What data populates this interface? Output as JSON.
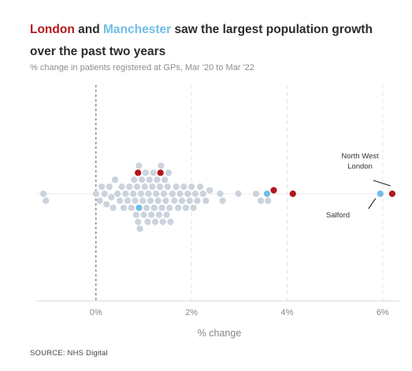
{
  "headline": {
    "london": "London",
    "and": " and ",
    "manchester": "Manchester",
    "rest": " saw the largest population growth over the past two years"
  },
  "subtitle": "% change in patients registered at GPs, Mar '20 to Mar '22",
  "source": "SOURCE: NHS Digital",
  "colors": {
    "london": "#b3161c",
    "manchester": "#70bde8",
    "other": "#cbd3dd"
  },
  "chart_data": {
    "type": "scatter",
    "subtype": "beeswarm",
    "xlabel": "% change",
    "x_ticks": [
      {
        "value": 0,
        "label": "0%"
      },
      {
        "value": 2,
        "label": "2%"
      },
      {
        "value": 4,
        "label": "4%"
      },
      {
        "value": 6,
        "label": "6%"
      }
    ],
    "xlim": [
      -1.25,
      6.35
    ],
    "zero_line": "dashed",
    "grid": "vertical dashed",
    "annotations": [
      {
        "text": "North West London",
        "value": 6.2
      },
      {
        "text": "Salford",
        "value": 5.95
      }
    ],
    "series": [
      {
        "name": "London",
        "points": [
          {
            "x": 0.88,
            "y": 0
          },
          {
            "x": 1.35,
            "y": 0
          },
          {
            "x": 3.72,
            "y": 0
          },
          {
            "x": 4.12,
            "y": 0
          },
          {
            "x": 6.2,
            "y": 0
          }
        ]
      },
      {
        "name": "Manchester",
        "points": [
          {
            "x": 0.9,
            "y": 0
          },
          {
            "x": 3.58,
            "y": 0
          },
          {
            "x": 5.95,
            "y": 0
          }
        ]
      },
      {
        "name": "Other",
        "points": [
          {
            "x": -1.1,
            "y": 0
          },
          {
            "x": -1.05,
            "y": 0
          },
          {
            "x": 0.0,
            "y": 0
          },
          {
            "x": 0.08,
            "y": 0
          },
          {
            "x": 0.12,
            "y": 0
          },
          {
            "x": 0.18,
            "y": 0
          },
          {
            "x": 0.22,
            "y": 0
          },
          {
            "x": 0.28,
            "y": 0
          },
          {
            "x": 0.32,
            "y": 0
          },
          {
            "x": 0.36,
            "y": 0
          },
          {
            "x": 0.4,
            "y": 0
          },
          {
            "x": 0.45,
            "y": 0
          },
          {
            "x": 0.5,
            "y": 0
          },
          {
            "x": 0.54,
            "y": 0
          },
          {
            "x": 0.58,
            "y": 0
          },
          {
            "x": 0.62,
            "y": 0
          },
          {
            "x": 0.66,
            "y": 0
          },
          {
            "x": 0.7,
            "y": 0
          },
          {
            "x": 0.74,
            "y": 0
          },
          {
            "x": 0.78,
            "y": 0
          },
          {
            "x": 0.8,
            "y": 0
          },
          {
            "x": 0.82,
            "y": 0
          },
          {
            "x": 0.84,
            "y": 0
          },
          {
            "x": 0.86,
            "y": 0
          },
          {
            "x": 0.88,
            "y": 0
          },
          {
            "x": 0.9,
            "y": 0
          },
          {
            "x": 0.92,
            "y": 0
          },
          {
            "x": 0.94,
            "y": 0
          },
          {
            "x": 0.96,
            "y": 0
          },
          {
            "x": 0.98,
            "y": 0
          },
          {
            "x": 1.0,
            "y": 0
          },
          {
            "x": 1.02,
            "y": 0
          },
          {
            "x": 1.04,
            "y": 0
          },
          {
            "x": 1.06,
            "y": 0
          },
          {
            "x": 1.08,
            "y": 0
          },
          {
            "x": 1.1,
            "y": 0
          },
          {
            "x": 1.12,
            "y": 0
          },
          {
            "x": 1.14,
            "y": 0
          },
          {
            "x": 1.16,
            "y": 0
          },
          {
            "x": 1.18,
            "y": 0
          },
          {
            "x": 1.2,
            "y": 0
          },
          {
            "x": 1.22,
            "y": 0
          },
          {
            "x": 1.24,
            "y": 0
          },
          {
            "x": 1.26,
            "y": 0
          },
          {
            "x": 1.28,
            "y": 0
          },
          {
            "x": 1.3,
            "y": 0
          },
          {
            "x": 1.32,
            "y": 0
          },
          {
            "x": 1.34,
            "y": 0
          },
          {
            "x": 1.36,
            "y": 0
          },
          {
            "x": 1.38,
            "y": 0
          },
          {
            "x": 1.4,
            "y": 0
          },
          {
            "x": 1.42,
            "y": 0
          },
          {
            "x": 1.44,
            "y": 0
          },
          {
            "x": 1.46,
            "y": 0
          },
          {
            "x": 1.48,
            "y": 0
          },
          {
            "x": 1.5,
            "y": 0
          },
          {
            "x": 1.52,
            "y": 0
          },
          {
            "x": 1.54,
            "y": 0
          },
          {
            "x": 1.56,
            "y": 0
          },
          {
            "x": 1.6,
            "y": 0
          },
          {
            "x": 1.64,
            "y": 0
          },
          {
            "x": 1.68,
            "y": 0
          },
          {
            "x": 1.72,
            "y": 0
          },
          {
            "x": 1.76,
            "y": 0
          },
          {
            "x": 1.8,
            "y": 0
          },
          {
            "x": 1.84,
            "y": 0
          },
          {
            "x": 1.88,
            "y": 0
          },
          {
            "x": 1.92,
            "y": 0
          },
          {
            "x": 1.96,
            "y": 0
          },
          {
            "x": 2.0,
            "y": 0
          },
          {
            "x": 2.04,
            "y": 0
          },
          {
            "x": 2.08,
            "y": 0
          },
          {
            "x": 2.12,
            "y": 0
          },
          {
            "x": 2.18,
            "y": 0
          },
          {
            "x": 2.24,
            "y": 0
          },
          {
            "x": 2.3,
            "y": 0
          },
          {
            "x": 2.38,
            "y": 0
          },
          {
            "x": 2.6,
            "y": 0
          },
          {
            "x": 2.65,
            "y": 0
          },
          {
            "x": 2.98,
            "y": 0
          },
          {
            "x": 3.35,
            "y": 0
          },
          {
            "x": 3.45,
            "y": 0
          },
          {
            "x": 3.6,
            "y": 0
          }
        ]
      }
    ]
  }
}
